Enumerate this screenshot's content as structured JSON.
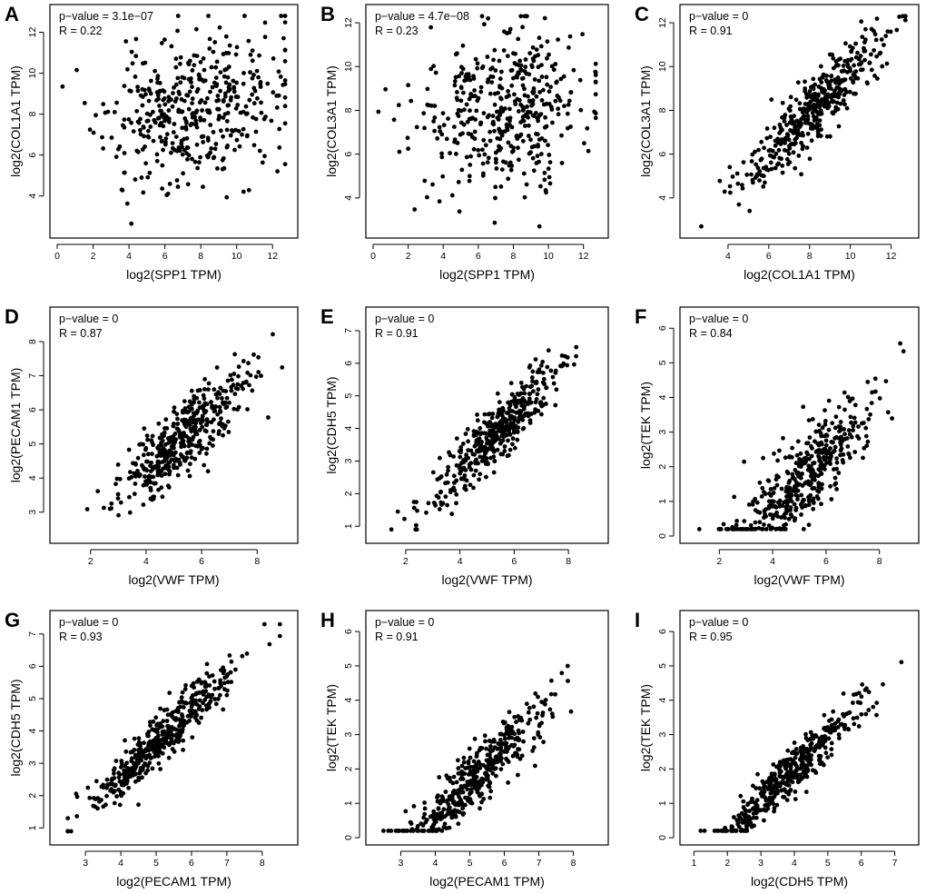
{
  "figure_title": "",
  "chart_data": [
    {
      "panel": "A",
      "type": "scatter",
      "pvalue_text": "p−value = 3.1e−07",
      "r_text": "R = 0.22",
      "r": 0.22,
      "xlabel": "log2(SPP1 TPM)",
      "ylabel": "log2(COL1A1 TPM)",
      "xlim": [
        0,
        13
      ],
      "ylim": [
        2.3,
        13
      ],
      "xticks": [
        0,
        2,
        4,
        6,
        8,
        10,
        12
      ],
      "yticks": [
        4,
        6,
        8,
        10,
        12
      ],
      "x_center": 7.5,
      "x_sd": 2.4,
      "y_center": 8.2,
      "y_sd": 1.8,
      "n_points": 430,
      "seed": 11
    },
    {
      "panel": "B",
      "type": "scatter",
      "pvalue_text": "p−value = 4.7e−08",
      "r_text": "R = 0.23",
      "r": 0.23,
      "xlabel": "log2(SPP1 TPM)",
      "ylabel": "log2(COL3A1 TPM)",
      "xlim": [
        0,
        13
      ],
      "ylim": [
        2.5,
        12.5
      ],
      "xticks": [
        0,
        2,
        4,
        6,
        8,
        10,
        12
      ],
      "yticks": [
        4,
        6,
        8,
        10,
        12
      ],
      "x_center": 7.5,
      "x_sd": 2.4,
      "y_center": 8.0,
      "y_sd": 1.8,
      "n_points": 430,
      "seed": 22
    },
    {
      "panel": "C",
      "type": "scatter",
      "pvalue_text": "p−value = 0",
      "r_text": "R = 0.91",
      "r": 0.91,
      "xlabel": "log2(COL1A1 TPM)",
      "ylabel": "log2(COL3A1 TPM)",
      "xlim": [
        2,
        13
      ],
      "ylim": [
        2.5,
        12.5
      ],
      "xticks": [
        4,
        6,
        8,
        10,
        12
      ],
      "yticks": [
        4,
        6,
        8,
        10,
        12
      ],
      "x_center": 8.2,
      "x_sd": 1.8,
      "y_center": 8.0,
      "y_sd": 1.8,
      "n_points": 430,
      "seed": 33
    },
    {
      "panel": "D",
      "type": "scatter",
      "pvalue_text": "p−value = 0",
      "r_text": "R = 0.87",
      "r": 0.87,
      "xlabel": "log2(VWF TPM)",
      "ylabel": "log2(PECAM1 TPM)",
      "xlim": [
        0.8,
        9.2
      ],
      "ylim": [
        2.3,
        8.8
      ],
      "xticks": [
        2,
        4,
        6,
        8
      ],
      "yticks": [
        3,
        4,
        5,
        6,
        7,
        8
      ],
      "x_center": 5.3,
      "x_sd": 1.2,
      "y_center": 5.1,
      "y_sd": 1.0,
      "n_points": 430,
      "seed": 44
    },
    {
      "panel": "E",
      "type": "scatter",
      "pvalue_text": "p−value = 0",
      "r_text": "R = 0.91",
      "r": 0.91,
      "xlabel": "log2(VWF TPM)",
      "ylabel": "log2(CDH5 TPM)",
      "xlim": [
        0.8,
        9.2
      ],
      "ylim": [
        0.7,
        7.5
      ],
      "xticks": [
        2,
        4,
        6,
        8
      ],
      "yticks": [
        1,
        2,
        3,
        4,
        5,
        6,
        7
      ],
      "x_center": 5.3,
      "x_sd": 1.2,
      "y_center": 3.8,
      "y_sd": 1.1,
      "n_points": 430,
      "seed": 55
    },
    {
      "panel": "F",
      "type": "scatter",
      "pvalue_text": "p−value = 0",
      "r_text": "R = 0.84",
      "r": 0.84,
      "xlabel": "log2(VWF TPM)",
      "ylabel": "log2(TEK TPM)",
      "xlim": [
        0.8,
        9.2
      ],
      "ylim": [
        0,
        6.4
      ],
      "xticks": [
        2,
        4,
        6,
        8
      ],
      "yticks": [
        0,
        1,
        2,
        3,
        4,
        5,
        6
      ],
      "x_center": 5.3,
      "x_sd": 1.2,
      "y_center": 1.8,
      "y_sd": 1.1,
      "n_points": 430,
      "seed": 66
    },
    {
      "panel": "G",
      "type": "scatter",
      "pvalue_text": "p−value = 0",
      "r_text": "R = 0.93",
      "r": 0.93,
      "xlabel": "log2(PECAM1 TPM)",
      "ylabel": "log2(CDH5 TPM)",
      "xlim": [
        2.2,
        8.8
      ],
      "ylim": [
        0.7,
        7.5
      ],
      "xticks": [
        3,
        4,
        5,
        6,
        7,
        8
      ],
      "yticks": [
        1,
        2,
        3,
        4,
        5,
        6,
        7
      ],
      "x_center": 5.2,
      "x_sd": 1.0,
      "y_center": 3.8,
      "y_sd": 1.1,
      "n_points": 430,
      "seed": 77
    },
    {
      "panel": "H",
      "type": "scatter",
      "pvalue_text": "p−value = 0",
      "r_text": "R = 0.91",
      "r": 0.91,
      "xlabel": "log2(PECAM1 TPM)",
      "ylabel": "log2(TEK TPM)",
      "xlim": [
        2.2,
        8.8
      ],
      "ylim": [
        0,
        6.4
      ],
      "xticks": [
        3,
        4,
        5,
        6,
        7,
        8
      ],
      "yticks": [
        0,
        1,
        2,
        3,
        4,
        5,
        6
      ],
      "x_center": 5.2,
      "x_sd": 1.0,
      "y_center": 1.8,
      "y_sd": 1.1,
      "n_points": 430,
      "seed": 88
    },
    {
      "panel": "I",
      "type": "scatter",
      "pvalue_text": "p−value = 0",
      "r_text": "R = 0.95",
      "r": 0.95,
      "xlabel": "log2(CDH5 TPM)",
      "ylabel": "log2(TEK TPM)",
      "xlim": [
        0.8,
        7.5
      ],
      "ylim": [
        0,
        6.4
      ],
      "xticks": [
        1,
        2,
        3,
        4,
        5,
        6,
        7
      ],
      "yticks": [
        0,
        1,
        2,
        3,
        4,
        5,
        6
      ],
      "x_center": 3.8,
      "x_sd": 1.1,
      "y_center": 1.8,
      "y_sd": 1.1,
      "n_points": 430,
      "seed": 99
    }
  ]
}
